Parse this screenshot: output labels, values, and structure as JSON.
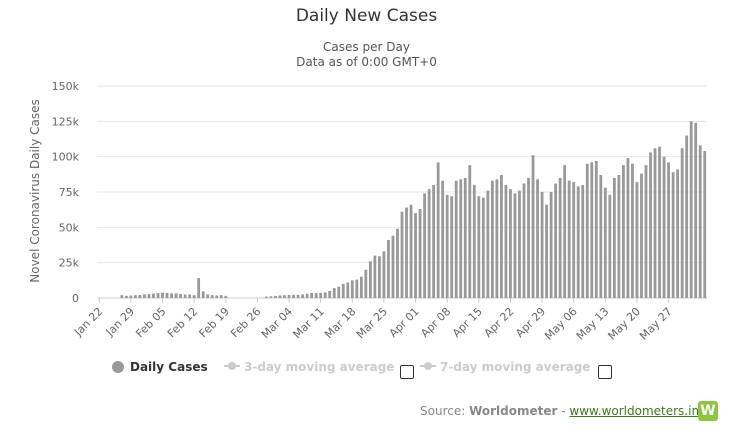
{
  "chart_data": {
    "type": "bar",
    "title": "Daily New Cases",
    "subtitle_line1": "Cases per Day",
    "subtitle_line2": "Data as of 0:00 GMT+0",
    "ylabel": "Novel Coronavirus Daily Cases",
    "xlabel": "",
    "ylim": [
      0,
      150000
    ],
    "yticks": [
      0,
      25000,
      50000,
      75000,
      100000,
      125000,
      150000
    ],
    "ytick_labels": [
      "0",
      "25k",
      "50k",
      "75k",
      "100k",
      "125k",
      "150k"
    ],
    "xtick_labels": [
      "Jan 22",
      "Jan 29",
      "Feb 05",
      "Feb 12",
      "Feb 19",
      "Feb 26",
      "Mar 04",
      "Mar 11",
      "Mar 18",
      "Mar 25",
      "Apr 01",
      "Apr 08",
      "Apr 15",
      "Apr 22",
      "Apr 29",
      "May 06",
      "May 13",
      "May 20",
      "May 27"
    ],
    "start_date": "2020-01-22",
    "end_date": "2020-06-02",
    "series": [
      {
        "name": "Daily Cases",
        "color": "#999999",
        "values": [
          0,
          0,
          0,
          0,
          0,
          2000,
          1500,
          1800,
          2000,
          2200,
          2600,
          2800,
          3200,
          3500,
          3800,
          3600,
          3300,
          3300,
          2900,
          2500,
          2500,
          2000,
          14100,
          4700,
          2600,
          2000,
          1800,
          2000,
          1500,
          0,
          0,
          0,
          0,
          0,
          0,
          0,
          0,
          1000,
          1200,
          1500,
          1800,
          2000,
          2200,
          2300,
          2200,
          2500,
          3000,
          3500,
          3500,
          3600,
          4000,
          5000,
          7000,
          8000,
          10000,
          11000,
          12500,
          13000,
          15000,
          20000,
          26000,
          30000,
          29500,
          33000,
          41000,
          44000,
          49000,
          61000,
          64000,
          66000,
          60000,
          63000,
          74000,
          77000,
          80000,
          96000,
          83000,
          73000,
          72000,
          83000,
          84000,
          85000,
          94000,
          80000,
          72000,
          71000,
          76000,
          83000,
          84000,
          87000,
          80000,
          77000,
          74000,
          76000,
          81000,
          85000,
          101000,
          84000,
          75000,
          66000,
          75000,
          81000,
          85000,
          94000,
          83000,
          82000,
          79000,
          80000,
          95000,
          96000,
          97000,
          87000,
          78000,
          73000,
          85000,
          87000,
          94000,
          99000,
          95000,
          82000,
          88000,
          94000,
          103000,
          106000,
          107000,
          100000,
          96000,
          89000,
          91000,
          106000,
          115000,
          125000,
          124000,
          108000,
          104000
        ]
      },
      {
        "name": "3-day moving average",
        "visible": false
      },
      {
        "name": "7-day moving average",
        "visible": false
      }
    ],
    "legend_position": "bottom",
    "grid": true
  },
  "legend": {
    "daily_cases": "Daily Cases",
    "ma3": "3-day moving average",
    "ma7": "7-day moving average"
  },
  "source": {
    "prefix": "Source: ",
    "name": "Worldometer",
    "separator": " - ",
    "link_text": "www.worldometers.info"
  },
  "logo": {
    "letter": "W",
    "color": "#8dc63f"
  }
}
